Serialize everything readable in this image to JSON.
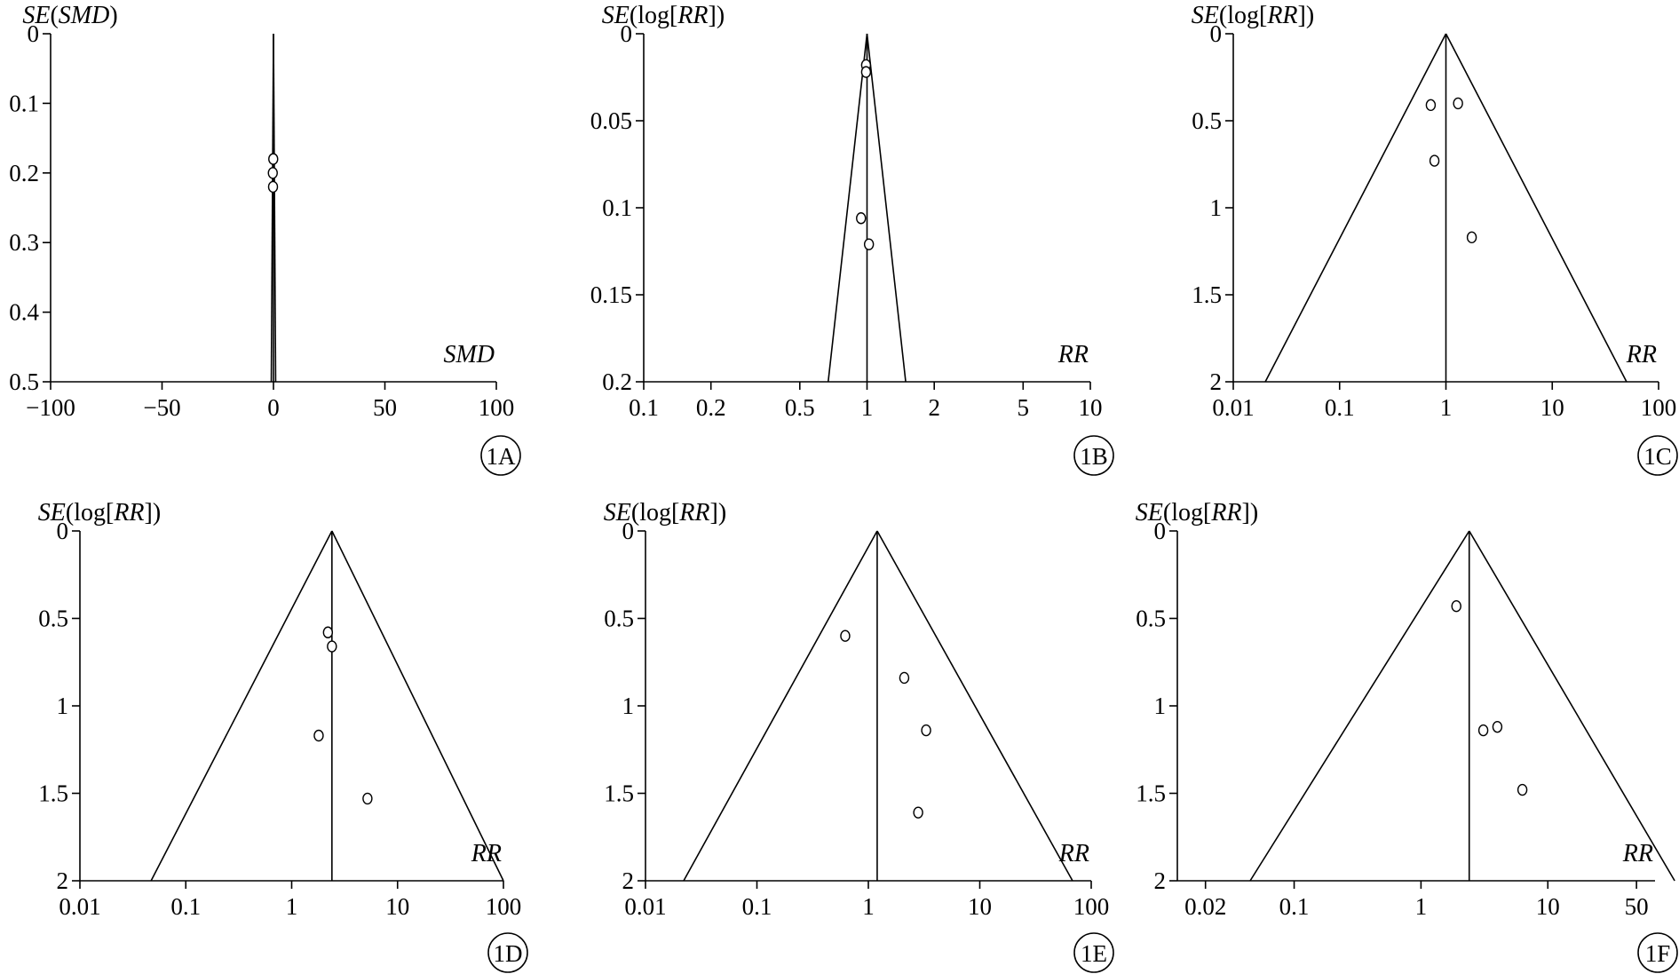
{
  "chart_data": [
    {
      "panel": "1A",
      "type": "scatter",
      "x_scale": "linear",
      "xlabel": "SMD",
      "ylabel": {
        "var": "SE",
        "inner": "SMD",
        "func": ""
      },
      "xlim": [
        -100,
        100
      ],
      "ylim": [
        0,
        0.5
      ],
      "xticks": [
        -100,
        -50,
        0,
        50,
        100
      ],
      "xtick_labels": [
        "−100",
        "−50",
        "0",
        "50",
        "100"
      ],
      "yticks": [
        0,
        0.1,
        0.2,
        0.3,
        0.4,
        0.5
      ],
      "ytick_labels": [
        "0",
        "0.1",
        "0.2",
        "0.3",
        "0.4",
        "0.5"
      ],
      "y_inverted": true,
      "pooled_estimate": 0,
      "funnel_bottom": [
        -0.98,
        0.98
      ],
      "points": [
        {
          "x": -0.1,
          "y": 0.18
        },
        {
          "x": -0.3,
          "y": 0.2
        },
        {
          "x": -0.2,
          "y": 0.22
        }
      ]
    },
    {
      "panel": "1B",
      "type": "scatter",
      "x_scale": "log",
      "xlabel": "RR",
      "ylabel": {
        "var": "SE",
        "inner": "RR",
        "func": "log"
      },
      "xlim": [
        0.1,
        10
      ],
      "ylim": [
        0,
        0.2
      ],
      "xticks": [
        0.1,
        0.2,
        0.5,
        1,
        2,
        5,
        10
      ],
      "xtick_labels": [
        "0.1",
        "0.2",
        "0.5",
        "1",
        "2",
        "5",
        "10"
      ],
      "yticks": [
        0,
        0.05,
        0.1,
        0.15,
        0.2
      ],
      "ytick_labels": [
        "0",
        "0.05",
        "0.1",
        "0.15",
        "0.2"
      ],
      "y_inverted": true,
      "pooled_estimate": 1,
      "funnel_bottom": [
        0.67,
        1.49
      ],
      "points": [
        {
          "x": 0.99,
          "y": 0.018
        },
        {
          "x": 0.99,
          "y": 0.022
        },
        {
          "x": 0.94,
          "y": 0.106
        },
        {
          "x": 1.02,
          "y": 0.121
        }
      ]
    },
    {
      "panel": "1C",
      "type": "scatter",
      "x_scale": "log",
      "xlabel": "RR",
      "ylabel": {
        "var": "SE",
        "inner": "RR",
        "func": "log"
      },
      "xlim": [
        0.01,
        100
      ],
      "ylim": [
        0,
        2
      ],
      "xticks": [
        0.01,
        0.1,
        1,
        10,
        100
      ],
      "xtick_labels": [
        "0.01",
        "0.1",
        "1",
        "10",
        "100"
      ],
      "yticks": [
        0,
        0.5,
        1,
        1.5,
        2
      ],
      "ytick_labels": [
        "0",
        "0.5",
        "1",
        "1.5",
        "2"
      ],
      "y_inverted": true,
      "pooled_estimate": 1,
      "funnel_bottom": [
        0.02,
        50
      ],
      "points": [
        {
          "x": 0.72,
          "y": 0.41
        },
        {
          "x": 1.3,
          "y": 0.4
        },
        {
          "x": 0.78,
          "y": 0.73
        },
        {
          "x": 1.75,
          "y": 1.17
        }
      ]
    },
    {
      "panel": "1D",
      "type": "scatter",
      "x_scale": "log",
      "xlabel": "RR",
      "ylabel": {
        "var": "SE",
        "inner": "RR",
        "func": "log"
      },
      "xlim": [
        0.01,
        100
      ],
      "ylim": [
        0,
        2
      ],
      "xticks": [
        0.01,
        0.1,
        1,
        10,
        100
      ],
      "xtick_labels": [
        "0.01",
        "0.1",
        "1",
        "10",
        "100"
      ],
      "yticks": [
        0,
        0.5,
        1,
        1.5,
        2
      ],
      "ytick_labels": [
        "0",
        "0.5",
        "1",
        "1.5",
        "2"
      ],
      "y_inverted": true,
      "pooled_estimate": 2.4,
      "funnel_bottom": [
        0.047,
        100
      ],
      "points": [
        {
          "x": 2.2,
          "y": 0.58
        },
        {
          "x": 2.4,
          "y": 0.66
        },
        {
          "x": 1.8,
          "y": 1.17
        },
        {
          "x": 5.2,
          "y": 1.53
        }
      ]
    },
    {
      "panel": "1E",
      "type": "scatter",
      "x_scale": "log",
      "xlabel": "RR",
      "ylabel": {
        "var": "SE",
        "inner": "RR",
        "func": "log"
      },
      "xlim": [
        0.01,
        100
      ],
      "ylim": [
        0,
        2
      ],
      "xticks": [
        0.01,
        0.1,
        1,
        10,
        100
      ],
      "xtick_labels": [
        "0.01",
        "0.1",
        "1",
        "10",
        "100"
      ],
      "yticks": [
        0,
        0.5,
        1,
        1.5,
        2
      ],
      "ytick_labels": [
        "0",
        "0.5",
        "1",
        "1.5",
        "2"
      ],
      "y_inverted": true,
      "pooled_estimate": 1.2,
      "funnel_bottom": [
        0.022,
        68
      ],
      "points": [
        {
          "x": 0.62,
          "y": 0.6
        },
        {
          "x": 2.1,
          "y": 0.84
        },
        {
          "x": 3.3,
          "y": 1.14
        },
        {
          "x": 2.8,
          "y": 1.61
        }
      ]
    },
    {
      "panel": "1F",
      "type": "scatter",
      "x_scale": "log",
      "xlabel": "RR",
      "ylabel": {
        "var": "SE",
        "inner": "RR",
        "func": "log"
      },
      "xlim": [
        0.012,
        70
      ],
      "ylim": [
        0,
        2
      ],
      "xticks": [
        0.02,
        0.1,
        1,
        10,
        50
      ],
      "xtick_labels": [
        "0.02",
        "0.1",
        "1",
        "10",
        "50"
      ],
      "yticks": [
        0,
        0.5,
        1,
        1.5,
        2
      ],
      "ytick_labels": [
        "0",
        "0.5",
        "1",
        "1.5",
        "2"
      ],
      "y_inverted": true,
      "pooled_estimate": 2.4,
      "funnel_bottom": [
        0.045,
        100
      ],
      "points": [
        {
          "x": 1.9,
          "y": 0.43
        },
        {
          "x": 4.0,
          "y": 1.12
        },
        {
          "x": 3.1,
          "y": 1.14
        },
        {
          "x": 6.3,
          "y": 1.48
        }
      ]
    }
  ]
}
